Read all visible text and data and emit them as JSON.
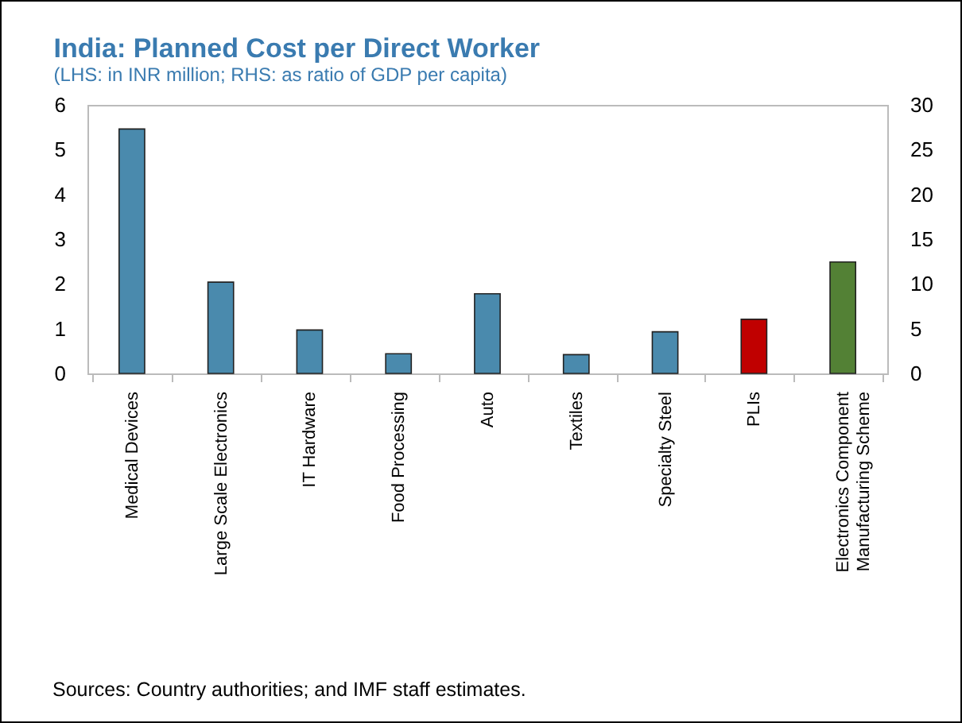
{
  "chart_data": {
    "type": "bar",
    "title": "India: Planned Cost per Direct Worker",
    "subtitle": "(LHS: in INR million; RHS: as ratio of GDP per capita)",
    "categories": [
      "Medical Devices",
      "Large Scale Electronics",
      "IT Hardware",
      "Food Processing",
      "Auto",
      "Textiles",
      "Specialty Steel",
      "PLIs",
      "Electronics Component Manufacturing Scheme"
    ],
    "values": [
      5.46,
      2.04,
      0.97,
      0.44,
      1.78,
      0.42,
      0.93,
      1.21,
      2.49
    ],
    "colors": [
      "#4a8aad",
      "#4a8aad",
      "#4a8aad",
      "#4a8aad",
      "#4a8aad",
      "#4a8aad",
      "#4a8aad",
      "#c00000",
      "#538135"
    ],
    "ylim": [
      0,
      6
    ],
    "yticks": [
      0,
      1,
      2,
      3,
      4,
      5,
      6
    ],
    "y2lim": [
      0,
      30
    ],
    "y2ticks": [
      0,
      5,
      10,
      15,
      20,
      25,
      30
    ],
    "grid": false,
    "annotations": [
      "Sources: Country authorities; and IMF staff estimates."
    ]
  }
}
